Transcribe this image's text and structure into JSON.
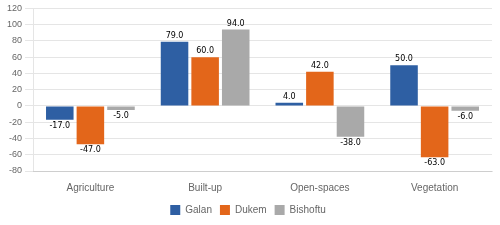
{
  "chart_data": {
    "type": "bar",
    "categories": [
      "Agriculture",
      "Built-up",
      "Open-spaces",
      "Vegetation"
    ],
    "series": [
      {
        "name": "Galan",
        "color": "#2E5FA3",
        "values": [
          -17,
          79,
          4,
          50
        ],
        "value_labels": [
          "-17.0",
          "79.0",
          "4.0",
          "50.0"
        ]
      },
      {
        "name": "Dukem",
        "color": "#E3661A",
        "values": [
          -47,
          60,
          42,
          -63
        ],
        "value_labels": [
          "-47.0",
          "60.0",
          "42.0",
          "-63.0"
        ]
      },
      {
        "name": "Bishoftu",
        "color": "#A9A9A9",
        "values": [
          -5,
          94,
          -38,
          -6
        ],
        "value_labels": [
          "-5.0",
          "94.0",
          "-38.0",
          "-6.0"
        ]
      }
    ],
    "ylim": [
      -80,
      120
    ],
    "yticks": [
      -80,
      -60,
      -40,
      -20,
      0,
      20,
      40,
      60,
      80,
      100,
      120
    ],
    "grid": true,
    "legend": "bottom",
    "data_labels": true
  }
}
